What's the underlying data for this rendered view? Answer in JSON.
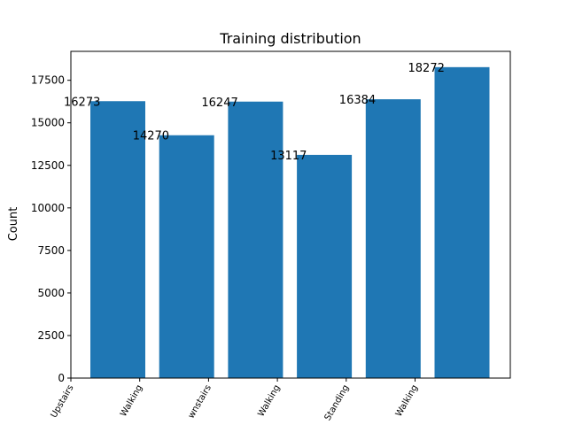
{
  "chart_data": {
    "type": "bar",
    "title": "Training distribution",
    "xlabel": "",
    "ylabel": "Count",
    "categories": [
      "Upstairs",
      "Walking",
      "wnstairs",
      "Walking",
      "Standing",
      "Walking"
    ],
    "values": [
      16273,
      14270,
      16247,
      13117,
      16384,
      18272
    ],
    "data_labels": [
      "16273",
      "14270",
      "16247",
      "13117",
      "16384",
      "18272"
    ],
    "yticks": [
      0,
      2500,
      5000,
      7500,
      10000,
      12500,
      15000,
      17500
    ],
    "ytick_labels": [
      "0",
      "2500",
      "5000",
      "7500",
      "10000",
      "12500",
      "15000",
      "17500"
    ],
    "ylim": [
      0,
      19200
    ],
    "bar_color": "#1f77b4",
    "grid": false,
    "xtick_rotation_deg": 60
  }
}
